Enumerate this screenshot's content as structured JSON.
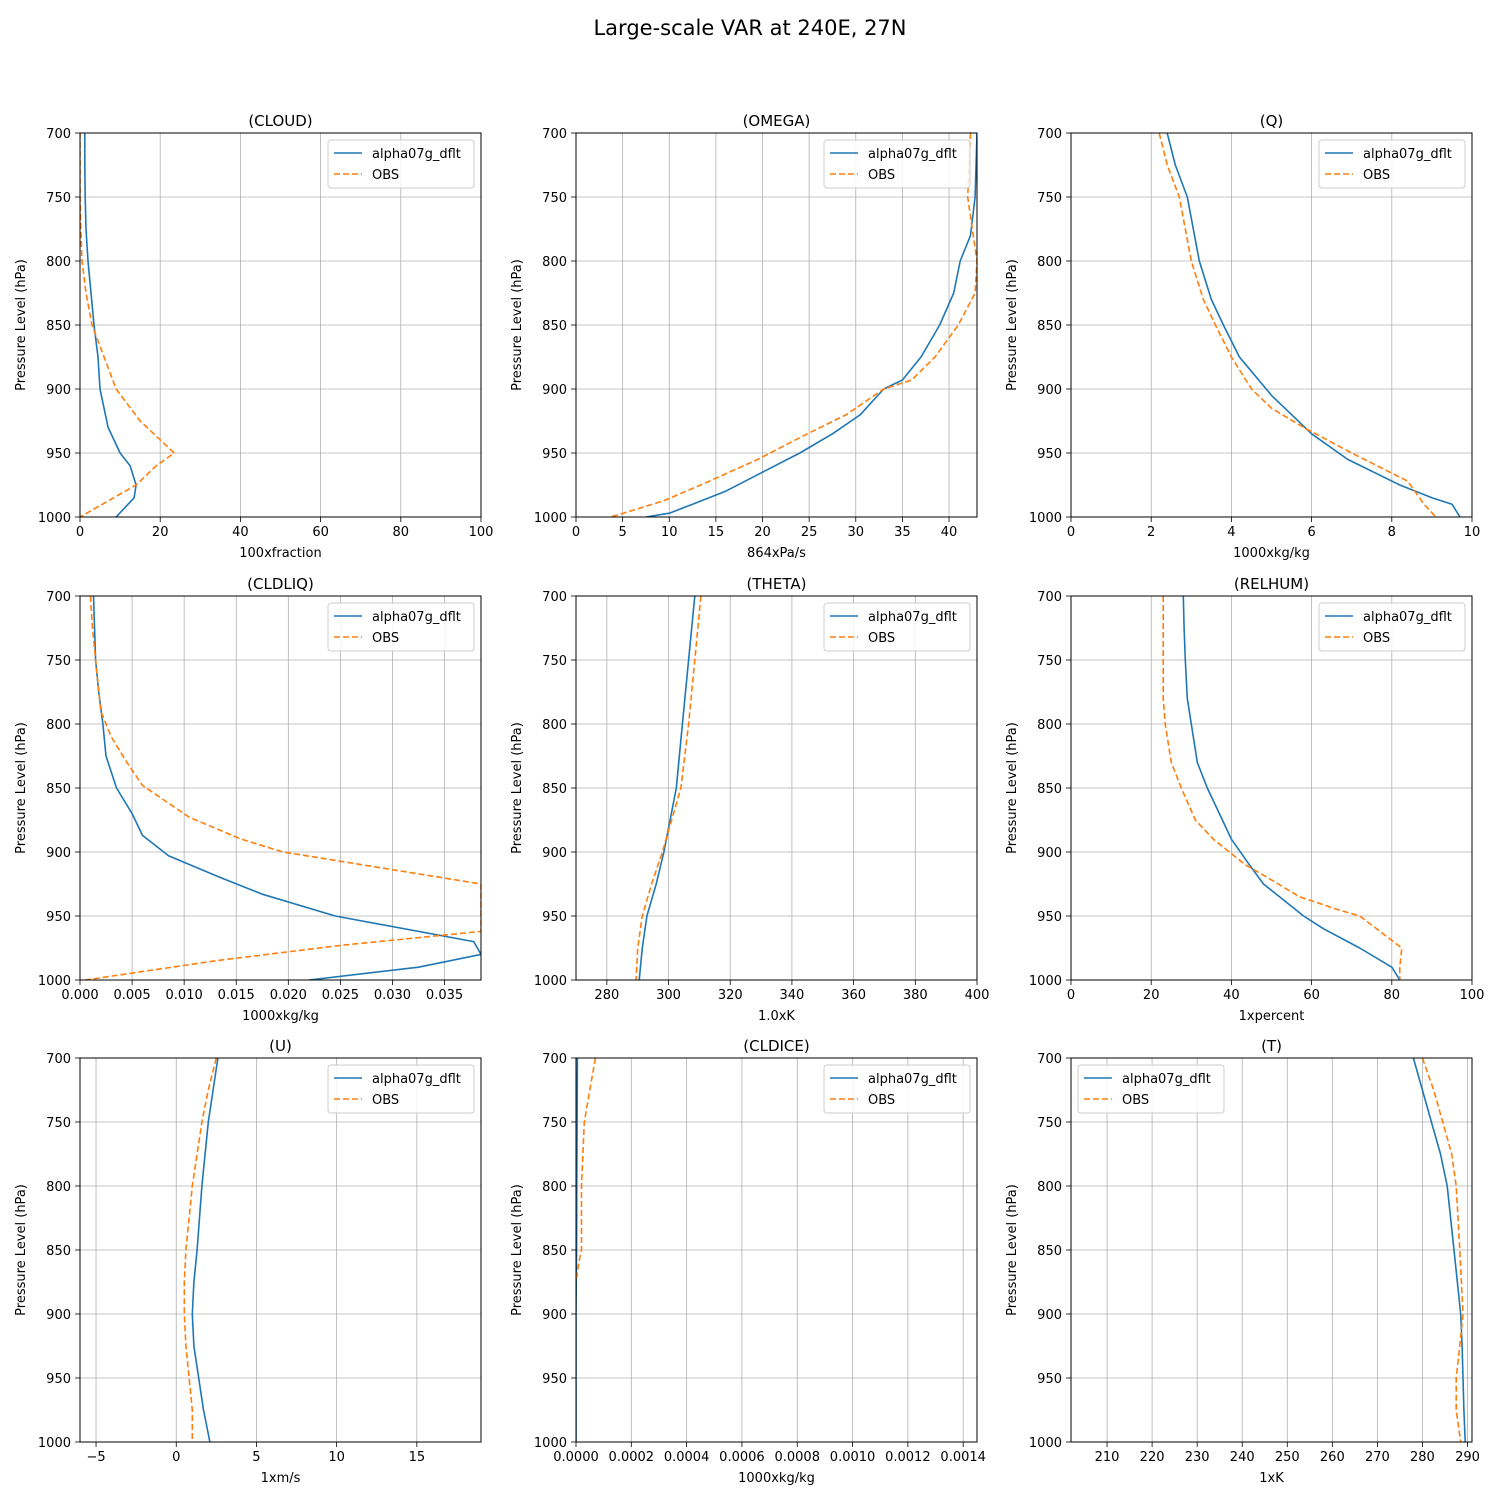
{
  "figure": {
    "suptitle": "Large-scale VAR at 240E, 27N"
  },
  "style": {
    "model_color": "#1f77b4",
    "obs_color": "#ff7f0e",
    "grid_color": "#b0b0b0"
  },
  "chart_data": [
    {
      "type": "line",
      "title": "(CLOUD)",
      "xlabel": "100xfraction",
      "ylabel": "Pressure Level (hPa)",
      "xlim": [
        0,
        100
      ],
      "ylim": [
        1000,
        700
      ],
      "y_inverted": true,
      "grid": true,
      "legend": "upper right",
      "xticks": [
        0,
        20,
        40,
        60,
        80,
        100
      ],
      "xtick_labels": [
        "0",
        "20",
        "40",
        "60",
        "80",
        "100"
      ],
      "yticks": [
        700,
        750,
        800,
        850,
        900,
        950,
        1000
      ],
      "series": [
        {
          "name": "alpha07g_dflt",
          "style": "solid",
          "x": [
            1.2,
            1.2,
            1.3,
            1.5,
            2.0,
            3.5,
            4.5,
            5.0,
            7.0,
            10.0,
            12.5,
            14.0,
            13.5,
            12.0,
            9.0
          ],
          "y": [
            700,
            725,
            750,
            775,
            800,
            850,
            875,
            900,
            930,
            950,
            960,
            975,
            985,
            990,
            1000
          ]
        },
        {
          "name": "OBS",
          "style": "dashed",
          "x": [
            0,
            0,
            0.2,
            0.5,
            1.5,
            3.0,
            6.0,
            9.0,
            15.0,
            23.5,
            19.0,
            14.0,
            0.0
          ],
          "y": [
            700,
            750,
            775,
            800,
            825,
            850,
            875,
            900,
            925,
            950,
            960,
            975,
            1000
          ]
        }
      ]
    },
    {
      "type": "line",
      "title": "(OMEGA)",
      "xlabel": "864xPa/s",
      "ylabel": "Pressure Level (hPa)",
      "xlim": [
        0,
        43
      ],
      "ylim": [
        1000,
        700
      ],
      "y_inverted": true,
      "grid": true,
      "legend": "upper right",
      "xticks": [
        0,
        5,
        10,
        15,
        20,
        25,
        30,
        35,
        40
      ],
      "xtick_labels": [
        "0",
        "5",
        "10",
        "15",
        "20",
        "25",
        "30",
        "35",
        "40"
      ],
      "yticks": [
        700,
        750,
        800,
        850,
        900,
        950,
        1000
      ],
      "series": [
        {
          "name": "alpha07g_dflt",
          "style": "solid",
          "x": [
            43,
            42.8,
            42.3,
            41.2,
            40.5,
            39.0,
            37.0,
            35.0,
            33.0,
            30.5,
            27.5,
            24.0,
            20.0,
            16.0,
            12.5,
            10.0,
            7.5
          ],
          "y": [
            700,
            750,
            780,
            800,
            825,
            850,
            875,
            893,
            900,
            920,
            935,
            950,
            965,
            980,
            990,
            997,
            1000
          ]
        },
        {
          "name": "OBS",
          "style": "dashed",
          "x": [
            42.3,
            42.0,
            42.5,
            43.0,
            42.8,
            41.0,
            38.5,
            36.0,
            33.0,
            29.0,
            24.0,
            19.5,
            14.0,
            9.5,
            6.0,
            3.7
          ],
          "y": [
            700,
            750,
            775,
            800,
            825,
            850,
            875,
            893,
            900,
            920,
            938,
            955,
            973,
            987,
            995,
            1000
          ]
        }
      ]
    },
    {
      "type": "line",
      "title": "(Q)",
      "xlabel": "1000xkg/kg",
      "ylabel": "Pressure Level (hPa)",
      "xlim": [
        0,
        10
      ],
      "ylim": [
        1000,
        700
      ],
      "y_inverted": true,
      "grid": true,
      "legend": "upper right",
      "xticks": [
        0,
        2,
        4,
        6,
        8,
        10
      ],
      "xtick_labels": [
        "0",
        "2",
        "4",
        "6",
        "8",
        "10"
      ],
      "yticks": [
        700,
        750,
        800,
        850,
        900,
        950,
        1000
      ],
      "series": [
        {
          "name": "alpha07g_dflt",
          "style": "solid",
          "x": [
            2.4,
            2.6,
            2.9,
            3.2,
            3.5,
            3.8,
            4.2,
            4.6,
            5.0,
            5.5,
            6.0,
            6.9,
            8.2,
            9.0,
            9.5,
            9.7
          ],
          "y": [
            700,
            725,
            750,
            800,
            830,
            850,
            875,
            890,
            905,
            920,
            935,
            955,
            975,
            985,
            990,
            1000
          ]
        },
        {
          "name": "OBS",
          "style": "dashed",
          "x": [
            2.2,
            2.4,
            2.7,
            3.0,
            3.3,
            3.6,
            4.0,
            4.5,
            5.0,
            5.8,
            7.0,
            8.4,
            8.8,
            9.1
          ],
          "y": [
            700,
            725,
            750,
            800,
            830,
            850,
            875,
            900,
            915,
            930,
            950,
            972,
            990,
            1000
          ]
        }
      ]
    },
    {
      "type": "line",
      "title": "(CLDLIQ)",
      "xlabel": "1000xkg/kg",
      "ylabel": "Pressure Level (hPa)",
      "xlim": [
        0,
        0.0385
      ],
      "ylim": [
        1000,
        700
      ],
      "y_inverted": true,
      "grid": true,
      "legend": "upper right",
      "xticks": [
        0,
        0.005,
        0.01,
        0.015,
        0.02,
        0.025,
        0.03,
        0.035
      ],
      "xtick_labels": [
        "0.000",
        "0.005",
        "0.010",
        "0.015",
        "0.020",
        "0.025",
        "0.030",
        "0.035"
      ],
      "yticks": [
        700,
        750,
        800,
        850,
        900,
        950,
        1000
      ],
      "series": [
        {
          "name": "alpha07g_dflt",
          "style": "solid",
          "x": [
            0.0013,
            0.0015,
            0.0018,
            0.0022,
            0.0025,
            0.0035,
            0.005,
            0.006,
            0.0085,
            0.0135,
            0.0175,
            0.0245,
            0.0378,
            0.0385,
            0.0325,
            0.022
          ],
          "y": [
            700,
            750,
            775,
            800,
            825,
            850,
            870,
            887,
            903,
            920,
            933,
            950,
            970,
            980,
            990,
            1000
          ]
        },
        {
          "name": "OBS",
          "style": "dashed",
          "x": [
            0.001,
            0.0012,
            0.0015,
            0.002,
            0.003,
            0.0045,
            0.006,
            0.0105,
            0.0155,
            0.0195,
            0.0385,
            0.0385,
            0.025,
            0.013,
            0.0005
          ],
          "y": [
            700,
            725,
            750,
            790,
            810,
            830,
            848,
            873,
            890,
            900,
            925,
            962,
            973,
            985,
            1000
          ]
        }
      ]
    },
    {
      "type": "line",
      "title": "(THETA)",
      "xlabel": "1.0xK",
      "ylabel": "Pressure Level (hPa)",
      "xlim": [
        270,
        400
      ],
      "ylim": [
        1000,
        700
      ],
      "y_inverted": true,
      "grid": true,
      "legend": "upper right",
      "xticks": [
        280,
        300,
        320,
        340,
        360,
        380,
        400
      ],
      "xtick_labels": [
        "280",
        "300",
        "320",
        "340",
        "360",
        "380",
        "400"
      ],
      "yticks": [
        700,
        750,
        800,
        850,
        900,
        950,
        1000
      ],
      "series": [
        {
          "name": "alpha07g_dflt",
          "style": "solid",
          "x": [
            308.5,
            306.5,
            304.5,
            302.5,
            300.5,
            298.5,
            296.0,
            293.0,
            291.5,
            290.5
          ],
          "y": [
            700,
            750,
            800,
            850,
            875,
            900,
            925,
            950,
            975,
            1000
          ]
        },
        {
          "name": "OBS",
          "style": "dashed",
          "x": [
            310.5,
            308.5,
            306.5,
            304.0,
            301.0,
            298.0,
            294.5,
            291.5,
            290.0,
            289.5
          ],
          "y": [
            700,
            750,
            800,
            850,
            875,
            900,
            925,
            950,
            975,
            1000
          ]
        }
      ]
    },
    {
      "type": "line",
      "title": "(RELHUM)",
      "xlabel": "1xpercent",
      "ylabel": "Pressure Level (hPa)",
      "xlim": [
        0,
        100
      ],
      "ylim": [
        1000,
        700
      ],
      "y_inverted": true,
      "grid": true,
      "legend": "upper right",
      "xticks": [
        0,
        20,
        40,
        60,
        80,
        100
      ],
      "xtick_labels": [
        "0",
        "20",
        "40",
        "60",
        "80",
        "100"
      ],
      "yticks": [
        700,
        750,
        800,
        850,
        900,
        950,
        1000
      ],
      "series": [
        {
          "name": "alpha07g_dflt",
          "style": "solid",
          "x": [
            28.0,
            28.2,
            28.5,
            29.0,
            30.0,
            31.5,
            34.0,
            37.0,
            40.0,
            44.5,
            48.0,
            52.0,
            58.0,
            63.0,
            72.0,
            80.0,
            82.0
          ],
          "y": [
            700,
            725,
            750,
            780,
            800,
            830,
            850,
            870,
            890,
            910,
            925,
            935,
            950,
            960,
            975,
            990,
            1000
          ]
        },
        {
          "name": "OBS",
          "style": "dashed",
          "x": [
            23.0,
            23.0,
            23.0,
            23.5,
            25.0,
            27.5,
            31.0,
            35.5,
            39.5,
            43.5,
            49.0,
            57.0,
            66.5,
            72.0,
            82.5,
            82.0,
            82.0
          ],
          "y": [
            700,
            750,
            780,
            800,
            830,
            850,
            875,
            890,
            900,
            910,
            920,
            935,
            945,
            950,
            975,
            990,
            1000
          ]
        }
      ]
    },
    {
      "type": "line",
      "title": "(U)",
      "xlabel": "1xm/s",
      "ylabel": "Pressure Level (hPa)",
      "xlim": [
        -6,
        19
      ],
      "ylim": [
        1000,
        700
      ],
      "y_inverted": true,
      "grid": true,
      "legend": "upper right",
      "xticks": [
        -5,
        0,
        5,
        10,
        15
      ],
      "xtick_labels": [
        "−5",
        "0",
        "5",
        "10",
        "15"
      ],
      "yticks": [
        700,
        750,
        800,
        850,
        900,
        950,
        1000
      ],
      "series": [
        {
          "name": "alpha07g_dflt",
          "style": "solid",
          "x": [
            2.6,
            2.3,
            2.0,
            1.6,
            1.3,
            1.1,
            1.0,
            1.1,
            1.4,
            1.7,
            2.1
          ],
          "y": [
            700,
            725,
            750,
            800,
            850,
            875,
            900,
            925,
            950,
            975,
            1000
          ]
        },
        {
          "name": "OBS",
          "style": "dashed",
          "x": [
            2.5,
            2.0,
            1.6,
            1.0,
            0.6,
            0.5,
            0.5,
            0.6,
            0.8,
            1.0,
            1.0
          ],
          "y": [
            700,
            725,
            750,
            800,
            850,
            875,
            900,
            925,
            950,
            975,
            1000
          ]
        }
      ]
    },
    {
      "type": "line",
      "title": "(CLDICE)",
      "xlabel": "1000xkg/kg",
      "ylabel": "Pressure Level (hPa)",
      "xlim": [
        0,
        0.00145
      ],
      "ylim": [
        1000,
        700
      ],
      "y_inverted": true,
      "grid": true,
      "legend": "upper right",
      "xticks": [
        0,
        0.0002,
        0.0004,
        0.0006,
        0.0008,
        0.001,
        0.0012,
        0.0014
      ],
      "xtick_labels": [
        "0.0000",
        "0.0002",
        "0.0004",
        "0.0006",
        "0.0008",
        "0.0010",
        "0.0012",
        "0.0014"
      ],
      "yticks": [
        700,
        750,
        800,
        850,
        900,
        950,
        1000
      ],
      "series": [
        {
          "name": "alpha07g_dflt",
          "style": "solid",
          "x": [
            5e-06,
            4e-06,
            3e-06,
            2e-06,
            1e-06,
            0.0,
            0.0
          ],
          "y": [
            700,
            750,
            800,
            850,
            870,
            900,
            1000
          ]
        },
        {
          "name": "OBS",
          "style": "dashed",
          "x": [
            7e-05,
            5e-05,
            3e-05,
            2e-05,
            2e-05,
            2e-05,
            1e-05,
            0.0
          ],
          "y": [
            700,
            725,
            750,
            800,
            830,
            850,
            860,
            875
          ]
        }
      ]
    },
    {
      "type": "line",
      "title": "(T)",
      "xlabel": "1xK",
      "ylabel": "Pressure Level (hPa)",
      "xlim": [
        202,
        291
      ],
      "ylim": [
        1000,
        700
      ],
      "y_inverted": true,
      "grid": true,
      "legend": "upper left",
      "xticks": [
        210,
        220,
        230,
        240,
        250,
        260,
        270,
        280,
        290
      ],
      "xtick_labels": [
        "210",
        "220",
        "230",
        "240",
        "250",
        "260",
        "270",
        "280",
        "290"
      ],
      "yticks": [
        700,
        750,
        800,
        850,
        900,
        950,
        1000
      ],
      "series": [
        {
          "name": "alpha07g_dflt",
          "style": "solid",
          "x": [
            278.0,
            280.0,
            282.0,
            284.0,
            285.5,
            287.0,
            288.5,
            288.8,
            289.0,
            289.2,
            289.5
          ],
          "y": [
            700,
            725,
            750,
            775,
            800,
            850,
            900,
            925,
            950,
            975,
            1000
          ]
        },
        {
          "name": "OBS",
          "style": "dashed",
          "x": [
            280.0,
            282.5,
            284.5,
            286.5,
            287.5,
            288.3,
            289.0,
            288.3,
            287.5,
            287.5,
            288.5
          ],
          "y": [
            700,
            725,
            750,
            775,
            800,
            850,
            900,
            925,
            950,
            975,
            1000
          ]
        }
      ]
    }
  ]
}
